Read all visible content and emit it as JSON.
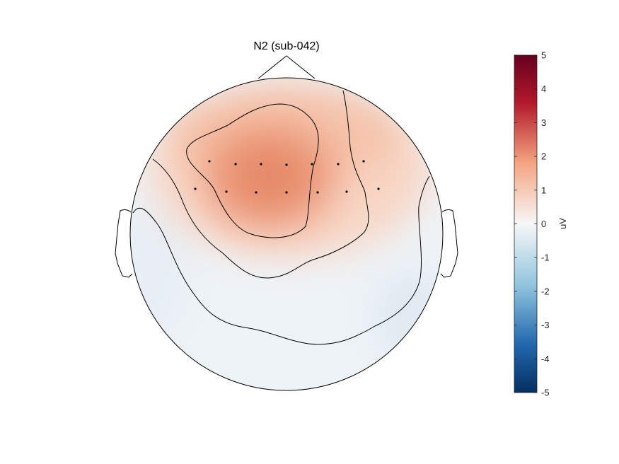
{
  "chart_data": {
    "type": "heatmap",
    "subtype": "topographic-scalp-map",
    "title": "N2 (sub-042)",
    "colorbar": {
      "label": "uV",
      "range": [
        -5,
        5
      ],
      "ticks": [
        5,
        4,
        3,
        2,
        1,
        0,
        -1,
        -2,
        -3,
        -4,
        -5
      ],
      "tick_labels": [
        "5",
        "4",
        "3",
        "2",
        "1",
        "0",
        "-1",
        "-2",
        "-3",
        "-4",
        "-5"
      ],
      "colormap": "diverging blue-white-red",
      "colors": {
        "min": "#053061",
        "low": "#2166ac",
        "mid_low": "#92c5de",
        "zero": "#f7f7f7",
        "mid_high": "#f4a582",
        "high": "#b2182b",
        "max": "#67001f"
      }
    },
    "contour_levels_uV": [
      0,
      1,
      2
    ],
    "field_summary": {
      "peak_uV": 2.3,
      "peak_region": "frontal midline",
      "min_uV": -0.5,
      "min_region": "posterior right"
    },
    "sensors_rows": 2,
    "sensors_count": 14
  }
}
